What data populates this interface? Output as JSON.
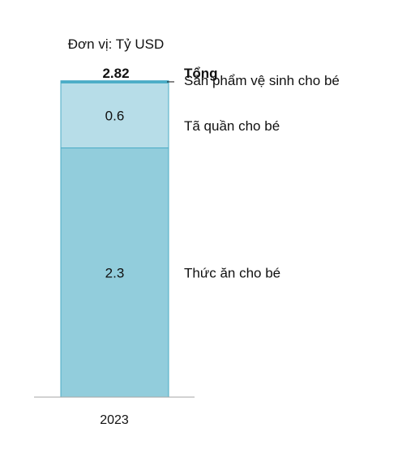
{
  "chart_data": {
    "type": "bar",
    "stacked": true,
    "unit_label": "Đơn vị: Tỷ USD",
    "categories": [
      "2023"
    ],
    "series": [
      {
        "name": "Thức ăn cho bé",
        "values": [
          2.3
        ],
        "label": "2.3",
        "color": "#92CDDC"
      },
      {
        "name": "Tã quần cho bé",
        "values": [
          0.6
        ],
        "label": "0.6",
        "color": "#B7DDE8"
      },
      {
        "name": "Sản phẩm vệ sinh cho bé",
        "values": [
          0.02
        ],
        "label": "",
        "color": "#4BACC6"
      }
    ],
    "total": {
      "name": "Tổng",
      "value": 2.82,
      "label": "2.82"
    },
    "ylim": [
      0,
      2.82
    ],
    "grid": false,
    "legend": "right"
  }
}
